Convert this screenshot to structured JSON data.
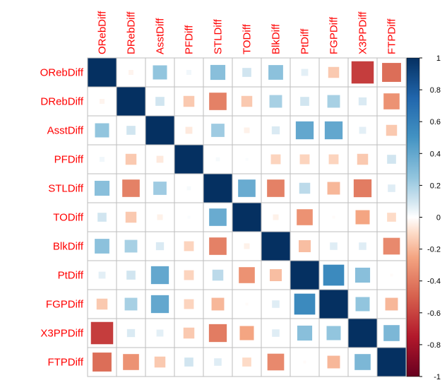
{
  "chart_data": {
    "type": "heatmap",
    "title": "",
    "variables": [
      "ORebDiff",
      "DRebDiff",
      "AsstDiff",
      "PFDiff",
      "STLDiff",
      "TODiff",
      "BlkDiff",
      "PtDiff",
      "FGPDiff",
      "X3PPDiff",
      "FTPDiff"
    ],
    "matrix": [
      [
        1.0,
        -0.03,
        0.25,
        0.03,
        0.28,
        0.1,
        0.27,
        0.06,
        -0.15,
        -0.62,
        -0.45
      ],
      [
        -0.03,
        1.0,
        0.1,
        -0.15,
        -0.38,
        -0.15,
        0.2,
        0.1,
        0.2,
        0.08,
        -0.32
      ],
      [
        0.25,
        0.1,
        1.0,
        -0.06,
        0.22,
        -0.04,
        0.08,
        0.4,
        0.4,
        0.06,
        -0.15
      ],
      [
        0.03,
        -0.15,
        -0.06,
        1.0,
        0.02,
        0.01,
        -0.12,
        -0.12,
        -0.12,
        -0.15,
        0.1
      ],
      [
        0.28,
        -0.38,
        0.22,
        0.02,
        1.0,
        0.38,
        -0.38,
        0.15,
        -0.2,
        -0.4,
        0.07
      ],
      [
        0.1,
        -0.15,
        -0.04,
        0.01,
        0.38,
        1.0,
        -0.04,
        -0.32,
        -0.01,
        -0.25,
        -0.1
      ],
      [
        0.27,
        0.2,
        0.08,
        -0.12,
        -0.38,
        -0.04,
        1.0,
        -0.18,
        0.07,
        0.07,
        -0.35
      ],
      [
        0.06,
        0.1,
        0.4,
        -0.12,
        0.15,
        -0.32,
        -0.18,
        1.0,
        0.55,
        0.28,
        -0.01
      ],
      [
        -0.15,
        0.2,
        0.4,
        -0.12,
        -0.2,
        -0.01,
        0.07,
        0.55,
        1.0,
        0.25,
        -0.2
      ],
      [
        -0.62,
        0.08,
        0.06,
        -0.15,
        -0.4,
        -0.25,
        0.07,
        0.28,
        0.25,
        1.0,
        0.32
      ],
      [
        -0.45,
        -0.32,
        -0.15,
        0.1,
        0.07,
        -0.1,
        -0.35,
        -0.01,
        -0.2,
        0.32,
        1.0
      ]
    ],
    "color_scale": {
      "range": [
        -1,
        1
      ],
      "ticks": [
        "1",
        "0.8",
        "0.6",
        "0.4",
        "0.2",
        "0",
        "-0.2",
        "-0.4",
        "-0.6",
        "-0.8",
        "-1"
      ],
      "stops": [
        {
          "value": -1.0,
          "color": "#67001f"
        },
        {
          "value": -0.75,
          "color": "#b2182b"
        },
        {
          "value": -0.5,
          "color": "#d6604d"
        },
        {
          "value": -0.25,
          "color": "#f4a582"
        },
        {
          "value": -0.1,
          "color": "#fddbc7"
        },
        {
          "value": 0.0,
          "color": "#ffffff"
        },
        {
          "value": 0.1,
          "color": "#d1e5f0"
        },
        {
          "value": 0.25,
          "color": "#92c5de"
        },
        {
          "value": 0.5,
          "color": "#4393c3"
        },
        {
          "value": 0.75,
          "color": "#2166ac"
        },
        {
          "value": 1.0,
          "color": "#053061"
        }
      ]
    },
    "label_color": "#ff0000",
    "grid": true,
    "legend": "right"
  }
}
